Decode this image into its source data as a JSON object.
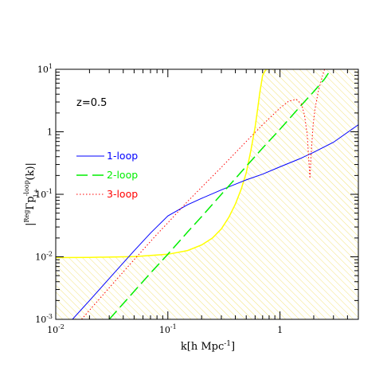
{
  "chart_data": {
    "type": "line",
    "xscale": "log",
    "yscale": "log",
    "xlim": [
      0.01,
      5
    ],
    "ylim": [
      0.001,
      10
    ],
    "xlabel": "k[h Mpc",
    "xlabel_exp": "-1",
    "xlabel_close": "]",
    "ylabel": {
      "pre": "|",
      "sup_reg": "Reg",
      "main": "Γp",
      "sup_loop": "-loop",
      "sub": "1+",
      "post": "(k)|"
    },
    "x_ticks": [
      {
        "value": 0.01,
        "base": "10",
        "exp": "-2"
      },
      {
        "value": 0.1,
        "base": "10",
        "exp": "-1"
      },
      {
        "value": 1,
        "base": "1",
        "exp": ""
      }
    ],
    "y_ticks": [
      {
        "value": 0.001,
        "base": "10",
        "exp": "-3"
      },
      {
        "value": 0.01,
        "base": "10",
        "exp": "-2"
      },
      {
        "value": 0.1,
        "base": "10",
        "exp": "-1"
      },
      {
        "value": 1,
        "base": "1",
        "exp": ""
      },
      {
        "value": 10,
        "base": "10",
        "exp": "1"
      }
    ],
    "annotation": "z=0.5",
    "legend_position": "upper-left",
    "series": [
      {
        "name": "1-loop",
        "color": "#0000ff",
        "dash": "solid",
        "x": [
          0.01,
          0.013,
          0.02,
          0.03,
          0.04,
          0.05,
          0.07,
          0.1,
          0.15,
          0.2,
          0.3,
          0.4,
          0.5,
          0.7,
          1,
          1.5,
          2,
          3,
          5
        ],
        "y": [
          0.0005,
          0.00085,
          0.002,
          0.0045,
          0.008,
          0.0125,
          0.024,
          0.045,
          0.068,
          0.086,
          0.118,
          0.145,
          0.17,
          0.21,
          0.275,
          0.37,
          0.47,
          0.68,
          1.3
        ]
      },
      {
        "name": "2-loop",
        "color": "#00ee00",
        "dash": "long-dash",
        "x": [
          0.03,
          0.05,
          0.07,
          0.1,
          0.15,
          0.2,
          0.3,
          0.5,
          0.7,
          1,
          1.5,
          2,
          2.5,
          2.8
        ],
        "y": [
          0.001,
          0.0028,
          0.0055,
          0.011,
          0.025,
          0.044,
          0.1,
          0.28,
          0.55,
          1.1,
          2.5,
          4.4,
          7,
          9.5
        ]
      },
      {
        "name": "3-loop",
        "color": "#ff0000",
        "dash": "dotted",
        "x": [
          0.017,
          0.03,
          0.05,
          0.08,
          0.1,
          0.15,
          0.2,
          0.3,
          0.5,
          0.7,
          1,
          1.2,
          1.4,
          1.55,
          1.65,
          1.75,
          1.8,
          1.85,
          1.9,
          1.97,
          2.05,
          2.2,
          2.4,
          2.5
        ],
        "y": [
          0.001,
          0.0032,
          0.009,
          0.023,
          0.035,
          0.077,
          0.13,
          0.27,
          0.7,
          1.3,
          2.4,
          3.1,
          3.3,
          2.8,
          1.9,
          0.9,
          0.4,
          0.18,
          0.45,
          1.2,
          2.3,
          4.5,
          8,
          10
        ]
      }
    ],
    "error_band": {
      "name": "error region",
      "color": "#ffff00",
      "hatch_color": "#f2e27a",
      "boundary": {
        "x": [
          0.01,
          0.02,
          0.05,
          0.1,
          0.15,
          0.2,
          0.25,
          0.3,
          0.35,
          0.4,
          0.45,
          0.5,
          0.55,
          0.6,
          0.63,
          0.66,
          0.7,
          0.75,
          0.8
        ],
        "y": [
          0.0097,
          0.0098,
          0.0101,
          0.011,
          0.0126,
          0.0155,
          0.02,
          0.028,
          0.043,
          0.07,
          0.12,
          0.22,
          0.5,
          1.2,
          2.2,
          4.2,
          8,
          10,
          10
        ]
      }
    }
  }
}
